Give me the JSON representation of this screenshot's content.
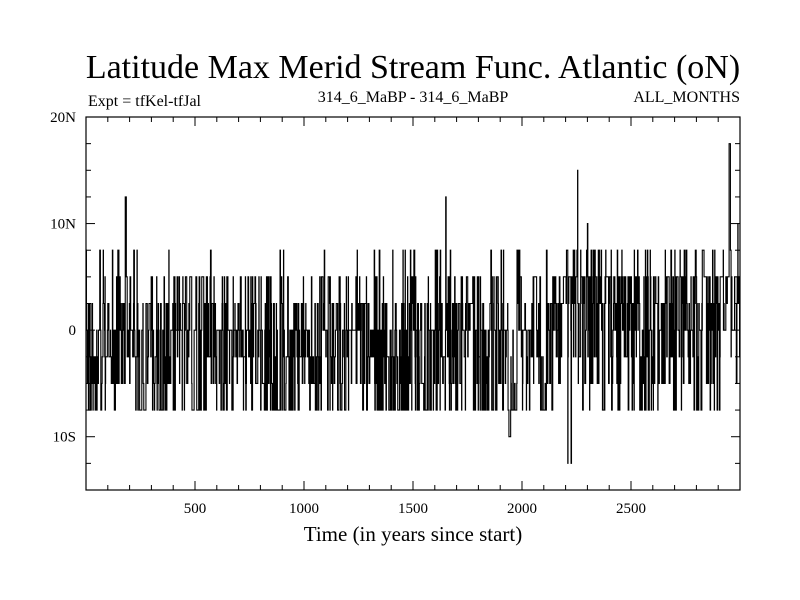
{
  "chart_data": {
    "type": "line",
    "title": "Latitude Max Merid Stream Func. Atlantic (oN)",
    "subtitle_left": "Expt = tfKel-tfJal",
    "subtitle_center": "314_6_MaBP - 314_6_MaBP",
    "subtitle_right": "ALL_MONTHS",
    "xlabel": "Time (in years since start)",
    "ylabel": "",
    "xlim": [
      0,
      3000
    ],
    "ylim": [
      -15,
      20
    ],
    "x_ticks": [
      {
        "value": 500,
        "label": "500"
      },
      {
        "value": 1000,
        "label": "1000"
      },
      {
        "value": 1500,
        "label": "1500"
      },
      {
        "value": 2000,
        "label": "2000"
      },
      {
        "value": 2500,
        "label": "2500"
      }
    ],
    "y_ticks": [
      {
        "value": 20,
        "label": "20N"
      },
      {
        "value": 10,
        "label": "10N"
      },
      {
        "value": 0,
        "label": "0"
      },
      {
        "value": -10,
        "label": "10S"
      }
    ],
    "grid": false,
    "legend": "none",
    "line_color": "#000000",
    "series": [
      {
        "step_years": 1,
        "levels": [
          -7.5,
          -5,
          -2.5,
          0,
          2.5,
          5,
          7.5
        ],
        "peaks": [
          {
            "x": 180,
            "y": 12.5
          },
          {
            "x": 1650,
            "y": 12.5
          },
          {
            "x": 1940,
            "y": -10
          },
          {
            "x": 2210,
            "y": -12.5
          },
          {
            "x": 2225,
            "y": -12.5
          },
          {
            "x": 2255,
            "y": 15
          },
          {
            "x": 2300,
            "y": 10
          },
          {
            "x": 2950,
            "y": 17.5
          },
          {
            "x": 2990,
            "y": 10
          }
        ]
      }
    ]
  }
}
